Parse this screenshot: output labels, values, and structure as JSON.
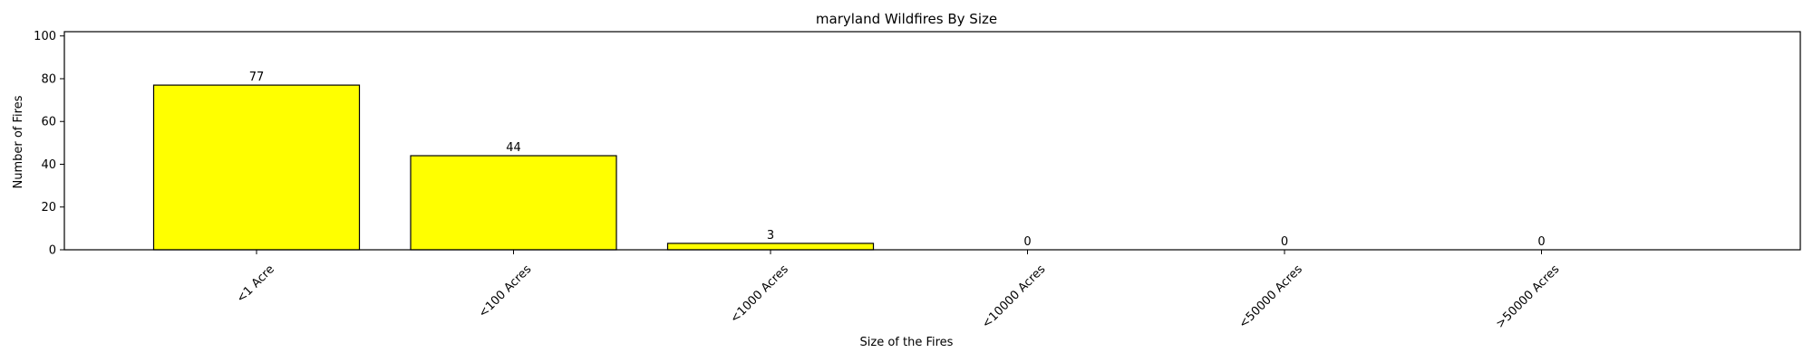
{
  "chart_data": {
    "type": "bar",
    "title": "maryland Wildfires By Size",
    "xlabel": "Size of the Fires",
    "ylabel": "Number of Fires",
    "categories": [
      "<1 Acre",
      "<100 Acres",
      "<1000 Acres",
      "<10000 Acres",
      "<50000 Acres",
      ">50000 Acres"
    ],
    "values": [
      77,
      44,
      3,
      0,
      0,
      0
    ],
    "ylim": [
      0,
      102
    ],
    "yticks": [
      0,
      20,
      40,
      60,
      80,
      100
    ],
    "grid": false,
    "bar_color": "#ffff00",
    "edge_color": "#000000"
  }
}
